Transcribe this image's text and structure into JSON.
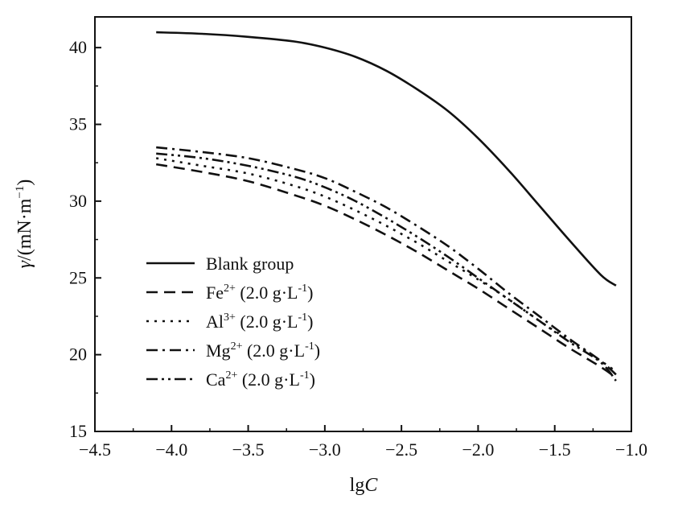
{
  "chart_data": {
    "type": "line",
    "title": "",
    "xlabel": {
      "prefix": "lg",
      "italic": "C"
    },
    "ylabel": {
      "italic": "γ",
      "rest": "/(mN·m",
      "sup": "−1",
      "close": ")"
    },
    "xlim": [
      -4.5,
      -1.0
    ],
    "ylim": [
      15,
      42
    ],
    "xticks": [
      -4.5,
      -4.0,
      -3.5,
      -3.0,
      -2.5,
      -2.0,
      -1.5,
      -1.0
    ],
    "xtick_labels": [
      "−4.5",
      "−4.0",
      "−3.5",
      "−3.0",
      "−2.5",
      "−2.0",
      "−1.5",
      "−1.0"
    ],
    "yticks": [
      15,
      20,
      25,
      30,
      35,
      40
    ],
    "ytick_labels": [
      "15",
      "20",
      "25",
      "30",
      "35",
      "40"
    ],
    "grid": false,
    "legend_position": "lower-left",
    "series": [
      {
        "name": "Blank group",
        "legend": {
          "base": "Blank group",
          "sup": "",
          "rest": ""
        },
        "dash": "solid",
        "x": [
          -4.1,
          -3.8,
          -3.5,
          -3.2,
          -3.0,
          -2.8,
          -2.6,
          -2.4,
          -2.2,
          -2.0,
          -1.8,
          -1.6,
          -1.4,
          -1.2,
          -1.1
        ],
        "y": [
          41.0,
          40.9,
          40.7,
          40.4,
          40.0,
          39.4,
          38.5,
          37.3,
          35.9,
          34.1,
          32.0,
          29.7,
          27.4,
          25.2,
          24.5
        ]
      },
      {
        "name": "Fe2+ (2.0 g·L-1)",
        "legend": {
          "base": "Fe",
          "sup": "2+",
          "rest": " (2.0 g·L",
          "sup2": "-1",
          "close": ")"
        },
        "dash": "dashed",
        "x": [
          -4.1,
          -3.8,
          -3.5,
          -3.2,
          -3.0,
          -2.8,
          -2.6,
          -2.4,
          -2.2,
          -2.0,
          -1.8,
          -1.6,
          -1.4,
          -1.2,
          -1.1
        ],
        "y": [
          32.4,
          31.9,
          31.3,
          30.4,
          29.7,
          28.8,
          27.8,
          26.7,
          25.5,
          24.3,
          23.0,
          21.7,
          20.4,
          19.2,
          18.5
        ]
      },
      {
        "name": "Al3+ (2.0 g·L-1)",
        "legend": {
          "base": "Al",
          "sup": "3+",
          "rest": " (2.0 g·L",
          "sup2": "-1",
          "close": ")"
        },
        "dash": "dotted",
        "x": [
          -4.1,
          -3.8,
          -3.5,
          -3.2,
          -3.0,
          -2.8,
          -2.6,
          -2.4,
          -2.2,
          -2.0,
          -1.8,
          -1.6,
          -1.4,
          -1.2,
          -1.1
        ],
        "y": [
          32.8,
          32.3,
          31.8,
          31.0,
          30.3,
          29.4,
          28.4,
          27.3,
          26.1,
          24.9,
          23.6,
          22.2,
          20.9,
          19.6,
          18.9
        ]
      },
      {
        "name": "Mg2+ (2.0 g·L-1)",
        "legend": {
          "base": "Mg",
          "sup": "2+",
          "rest": " (2.0 g·L",
          "sup2": "-1",
          "close": ")"
        },
        "dash": "dashdot",
        "x": [
          -4.1,
          -3.8,
          -3.5,
          -3.2,
          -3.0,
          -2.8,
          -2.6,
          -2.4,
          -2.2,
          -2.0,
          -1.8,
          -1.6,
          -1.4,
          -1.2,
          -1.1
        ],
        "y": [
          33.5,
          33.2,
          32.8,
          32.1,
          31.5,
          30.6,
          29.6,
          28.4,
          27.1,
          25.6,
          24.0,
          22.5,
          21.0,
          19.6,
          18.7
        ]
      },
      {
        "name": "Ca2+ (2.0 g·L-1)",
        "legend": {
          "base": "Ca",
          "sup": "2+",
          "rest": " (2.0 g·L",
          "sup2": "-1",
          "close": ")"
        },
        "dash": "dashdotdot",
        "x": [
          -4.1,
          -3.8,
          -3.5,
          -3.2,
          -3.0,
          -2.8,
          -2.6,
          -2.4,
          -2.2,
          -2.0,
          -1.8,
          -1.6,
          -1.4,
          -1.2,
          -1.1
        ],
        "y": [
          33.1,
          32.8,
          32.3,
          31.6,
          30.9,
          30.0,
          28.9,
          27.7,
          26.4,
          25.0,
          23.6,
          22.2,
          20.8,
          19.5,
          18.3
        ]
      }
    ]
  }
}
